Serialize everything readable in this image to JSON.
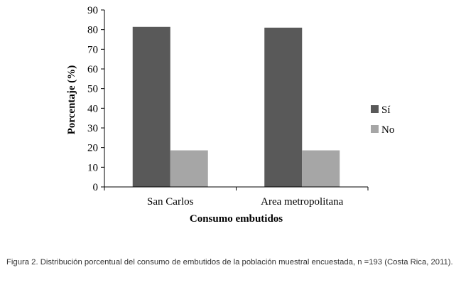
{
  "chart_data": {
    "type": "bar",
    "categories": [
      "San Carlos",
      "Area metropolitana"
    ],
    "series": [
      {
        "name": "Sí",
        "values": [
          81.4,
          81.0
        ],
        "color": "#595959"
      },
      {
        "name": "No",
        "values": [
          18.6,
          18.6
        ],
        "color": "#a6a6a6"
      }
    ],
    "ylim": [
      0,
      90
    ],
    "yticks": [
      0,
      10,
      20,
      30,
      40,
      50,
      60,
      70,
      80,
      90
    ],
    "xlabel": "Consumo embutidos",
    "ylabel": "Porcentaje (%)",
    "legend_position": "right",
    "grid": false
  },
  "caption": "Figura 2. Distribución porcentual del consumo de embutidos de la población muestral encuestada, n =193 (Costa Rica, 2011)."
}
